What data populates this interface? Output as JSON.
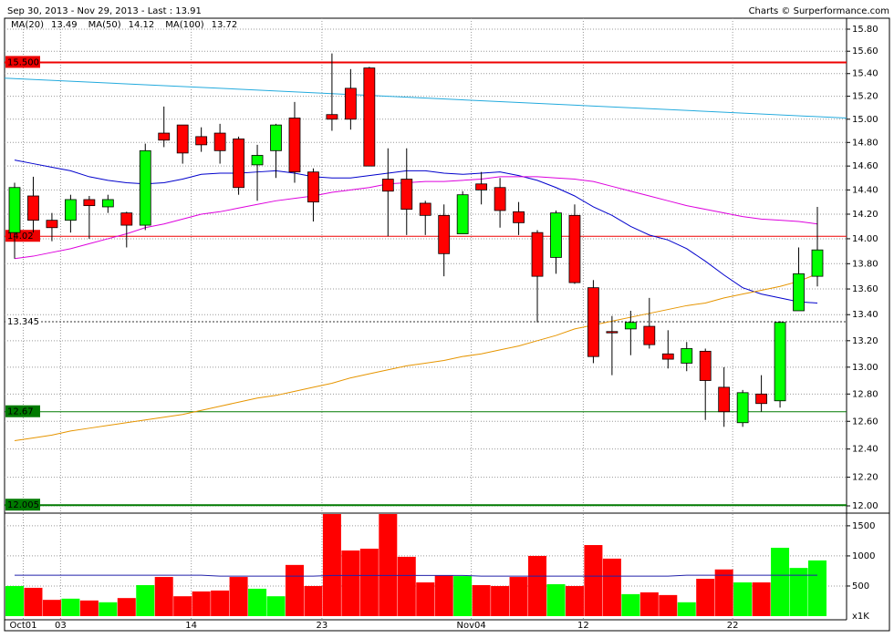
{
  "chart_data": {
    "type": "candlestick",
    "title": "Sep 30, 2013 - Nov 29, 2013 - Last : 13.91",
    "source": "Charts © Surperformance.com",
    "categories": [
      null,
      "Oct01",
      null,
      "03",
      null,
      null,
      null,
      null,
      null,
      null,
      "14",
      null,
      null,
      null,
      null,
      null,
      null,
      "23",
      null,
      null,
      null,
      null,
      null,
      null,
      null,
      "Nov04",
      null,
      null,
      null,
      null,
      null,
      "12",
      null,
      null,
      null,
      null,
      null,
      null,
      null,
      "22",
      null,
      null,
      null,
      null
    ],
    "open": [
      14.05,
      14.35,
      14.15,
      14.15,
      14.32,
      14.26,
      14.21,
      14.11,
      14.88,
      14.95,
      14.85,
      14.88,
      14.83,
      14.61,
      14.73,
      15.01,
      14.55,
      15.04,
      15.27,
      15.45,
      14.49,
      14.49,
      14.29,
      14.19,
      14.04,
      14.45,
      14.42,
      14.22,
      14.05,
      13.85,
      14.19,
      13.61,
      13.27,
      13.29,
      13.31,
      13.1,
      13.03,
      13.12,
      12.85,
      12.59,
      12.8,
      12.75,
      13.43,
      13.7
    ],
    "high": [
      14.46,
      14.51,
      14.21,
      14.36,
      14.35,
      14.36,
      14.22,
      14.79,
      15.11,
      14.95,
      14.93,
      14.96,
      14.85,
      14.78,
      14.96,
      15.15,
      14.58,
      15.58,
      15.44,
      15.46,
      14.75,
      14.75,
      14.31,
      14.28,
      14.39,
      14.55,
      14.5,
      14.3,
      14.07,
      14.23,
      14.28,
      13.67,
      13.39,
      13.43,
      13.53,
      13.28,
      13.19,
      13.14,
      13.0,
      12.83,
      12.94,
      13.35,
      13.93,
      14.26
    ],
    "low": [
      13.84,
      14.05,
      13.98,
      14.05,
      14.0,
      14.21,
      13.93,
      14.07,
      14.76,
      14.62,
      14.72,
      14.62,
      14.36,
      14.31,
      14.5,
      14.46,
      14.14,
      14.9,
      14.91,
      14.6,
      14.02,
      14.03,
      14.03,
      13.7,
      14.04,
      14.28,
      14.09,
      14.03,
      13.34,
      13.72,
      13.64,
      13.03,
      12.94,
      13.09,
      13.14,
      12.99,
      12.97,
      12.61,
      12.56,
      12.56,
      12.67,
      12.7,
      13.43,
      13.62
    ],
    "close": [
      14.42,
      14.15,
      14.09,
      14.32,
      14.27,
      14.32,
      14.11,
      14.73,
      14.82,
      14.71,
      14.78,
      14.73,
      14.42,
      14.69,
      14.95,
      14.55,
      14.3,
      15.0,
      15.0,
      14.6,
      14.39,
      14.24,
      14.19,
      13.88,
      14.36,
      14.4,
      14.23,
      14.13,
      13.7,
      14.21,
      13.65,
      13.08,
      13.26,
      13.34,
      13.17,
      13.06,
      13.14,
      12.9,
      12.67,
      12.81,
      12.73,
      13.34,
      13.72,
      13.91
    ],
    "up_color": "#00ff00",
    "down_color": "#ff0000",
    "log_scale": true,
    "grid": true,
    "ylim": [
      11.956,
      15.9
    ],
    "yticks": [
      {
        "value": 12,
        "label": "12.00"
      },
      {
        "value": 12.2,
        "label": "12.20"
      },
      {
        "value": 12.4,
        "label": "12.40"
      },
      {
        "value": 12.6,
        "label": "12.60"
      },
      {
        "value": 12.8,
        "label": "12.80"
      },
      {
        "value": 13,
        "label": "13.00"
      },
      {
        "value": 13.2,
        "label": "13.20"
      },
      {
        "value": 13.4,
        "label": "13.40"
      },
      {
        "value": 13.6,
        "label": "13.60"
      },
      {
        "value": 13.8,
        "label": "13.80"
      },
      {
        "value": 14,
        "label": "14.00"
      },
      {
        "value": 14.2,
        "label": "14.20"
      },
      {
        "value": 14.4,
        "label": "14.40"
      },
      {
        "value": 14.6,
        "label": "14.60"
      },
      {
        "value": 14.8,
        "label": "14.80"
      },
      {
        "value": 15,
        "label": "15.00"
      },
      {
        "value": 15.2,
        "label": "15.20"
      },
      {
        "value": 15.4,
        "label": "15.40"
      },
      {
        "value": 15.6,
        "label": "15.60"
      },
      {
        "value": 15.8,
        "label": "15.80"
      }
    ],
    "series": [
      {
        "name": "MA(20)",
        "last": 13.49,
        "color": "#0000cc",
        "values": [
          14.65,
          14.62,
          14.59,
          14.56,
          14.51,
          14.48,
          14.46,
          14.45,
          14.46,
          14.49,
          14.53,
          14.54,
          14.54,
          14.55,
          14.56,
          14.54,
          14.51,
          14.5,
          14.5,
          14.52,
          14.54,
          14.56,
          14.56,
          14.54,
          14.53,
          14.54,
          14.55,
          14.52,
          14.48,
          14.42,
          14.35,
          14.26,
          14.19,
          14.1,
          14.03,
          13.99,
          13.92,
          13.82,
          13.71,
          13.61,
          13.56,
          13.53,
          13.5,
          13.49
        ]
      },
      {
        "name": "MA(50)",
        "last": 14.12,
        "color": "#dd00dd",
        "values": [
          13.84,
          13.86,
          13.89,
          13.92,
          13.96,
          14.0,
          14.04,
          14.09,
          14.12,
          14.16,
          14.2,
          14.22,
          14.25,
          14.28,
          14.31,
          14.33,
          14.35,
          14.38,
          14.4,
          14.42,
          14.45,
          14.46,
          14.47,
          14.47,
          14.48,
          14.49,
          14.51,
          14.51,
          14.51,
          14.5,
          14.49,
          14.47,
          14.43,
          14.39,
          14.35,
          14.31,
          14.27,
          14.24,
          14.21,
          14.18,
          14.16,
          14.15,
          14.14,
          14.12
        ]
      },
      {
        "name": "MA(100)",
        "last": 13.72,
        "color": "#e69500",
        "values": [
          12.46,
          12.48,
          12.5,
          12.53,
          12.55,
          12.57,
          12.59,
          12.61,
          12.63,
          12.65,
          12.68,
          12.71,
          12.74,
          12.77,
          12.79,
          12.82,
          12.85,
          12.88,
          12.92,
          12.95,
          12.98,
          13.01,
          13.03,
          13.05,
          13.08,
          13.1,
          13.13,
          13.16,
          13.2,
          13.24,
          13.29,
          13.32,
          13.35,
          13.38,
          13.41,
          13.44,
          13.47,
          13.49,
          13.53,
          13.56,
          13.59,
          13.62,
          13.66,
          13.72
        ]
      }
    ],
    "levels": [
      {
        "value": 15.5,
        "label": "15.500",
        "color": "#ee0000",
        "text_color": "#ffffff",
        "width": 2
      },
      {
        "value": 14.02,
        "color": "#ee0000",
        "text_color": "#ffffff",
        "width": 1
      },
      {
        "value": 13.345,
        "color": "#333333",
        "text_color": "#000000",
        "width": 1,
        "dashed": true
      },
      {
        "value": 12.67,
        "color": "#007a00",
        "text_color": "#ffffff",
        "width": 1
      },
      {
        "value": 12.005,
        "label": "12.005",
        "color": "#007a00",
        "text_color": "#ffffff",
        "width": 2
      }
    ],
    "trendline": {
      "color": "#22aadd",
      "values": [
        15.36,
        15.01
      ]
    },
    "volume": {
      "values": [
        500,
        470,
        270,
        290,
        260,
        230,
        300,
        515,
        650,
        330,
        410,
        425,
        650,
        455,
        330,
        850,
        500,
        1700,
        1090,
        1120,
        1700,
        985,
        560,
        680,
        665,
        515,
        500,
        650,
        1000,
        530,
        500,
        1180,
        955,
        365,
        395,
        350,
        230,
        620,
        775,
        560,
        560,
        1135,
        800,
        925
      ],
      "ylim": [
        0,
        1680
      ],
      "yticks": [
        500,
        1000,
        1500
      ],
      "unit_label": "x1K",
      "ma": {
        "color": "#2222aa",
        "values": [
          680,
          680,
          680,
          680,
          680,
          680,
          680,
          680,
          680,
          680,
          680,
          665,
          665,
          665,
          665,
          665,
          665,
          675,
          675,
          675,
          675,
          675,
          675,
          675,
          675,
          665,
          665,
          665,
          665,
          665,
          665,
          665,
          665,
          665,
          665,
          665,
          680,
          680,
          680,
          680,
          680,
          680,
          680,
          680
        ]
      }
    }
  }
}
